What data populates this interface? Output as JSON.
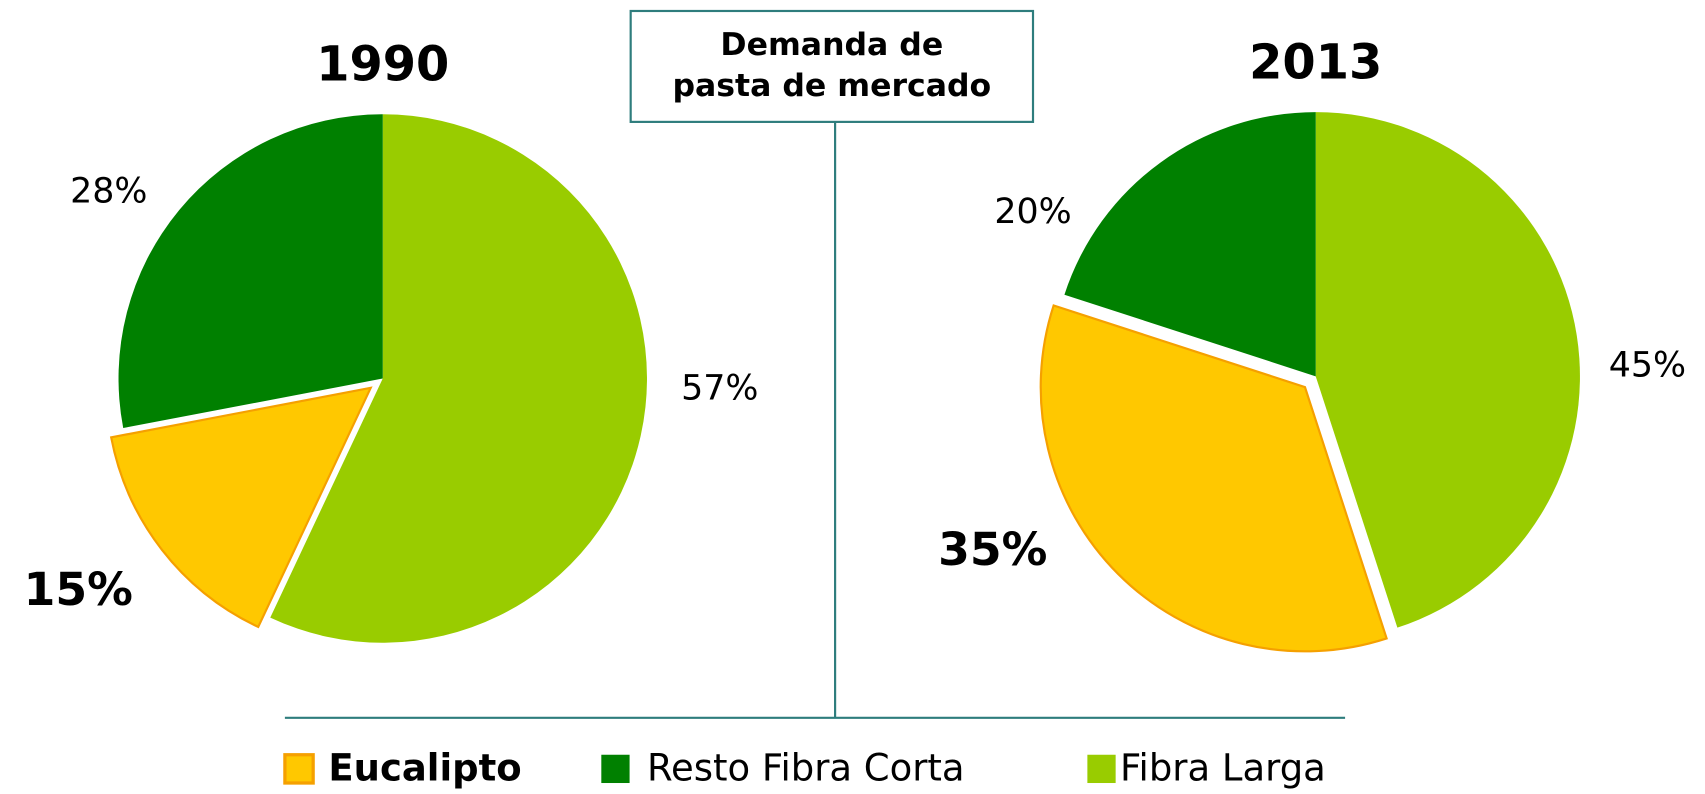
{
  "title": [
    "Demanda de",
    "pasta de mercado"
  ],
  "chart_data": [
    {
      "type": "pie",
      "title": "1990",
      "categories": [
        "Eucalipto",
        "Resto Fibra Corta",
        "Fibra Larga"
      ],
      "values": [
        15,
        28,
        57
      ],
      "value_labels": [
        "15%",
        "28%",
        "57%"
      ],
      "colors": [
        "#ffc800",
        "#008000",
        "#99cc00"
      ]
    },
    {
      "type": "pie",
      "title": "2013",
      "categories": [
        "Eucalipto",
        "Resto Fibra Corta",
        "Fibra Larga"
      ],
      "values": [
        35,
        20,
        45
      ],
      "value_labels": [
        "35%",
        "20%",
        "45%"
      ],
      "colors": [
        "#ffc800",
        "#008000",
        "#99cc00"
      ]
    }
  ]
}
